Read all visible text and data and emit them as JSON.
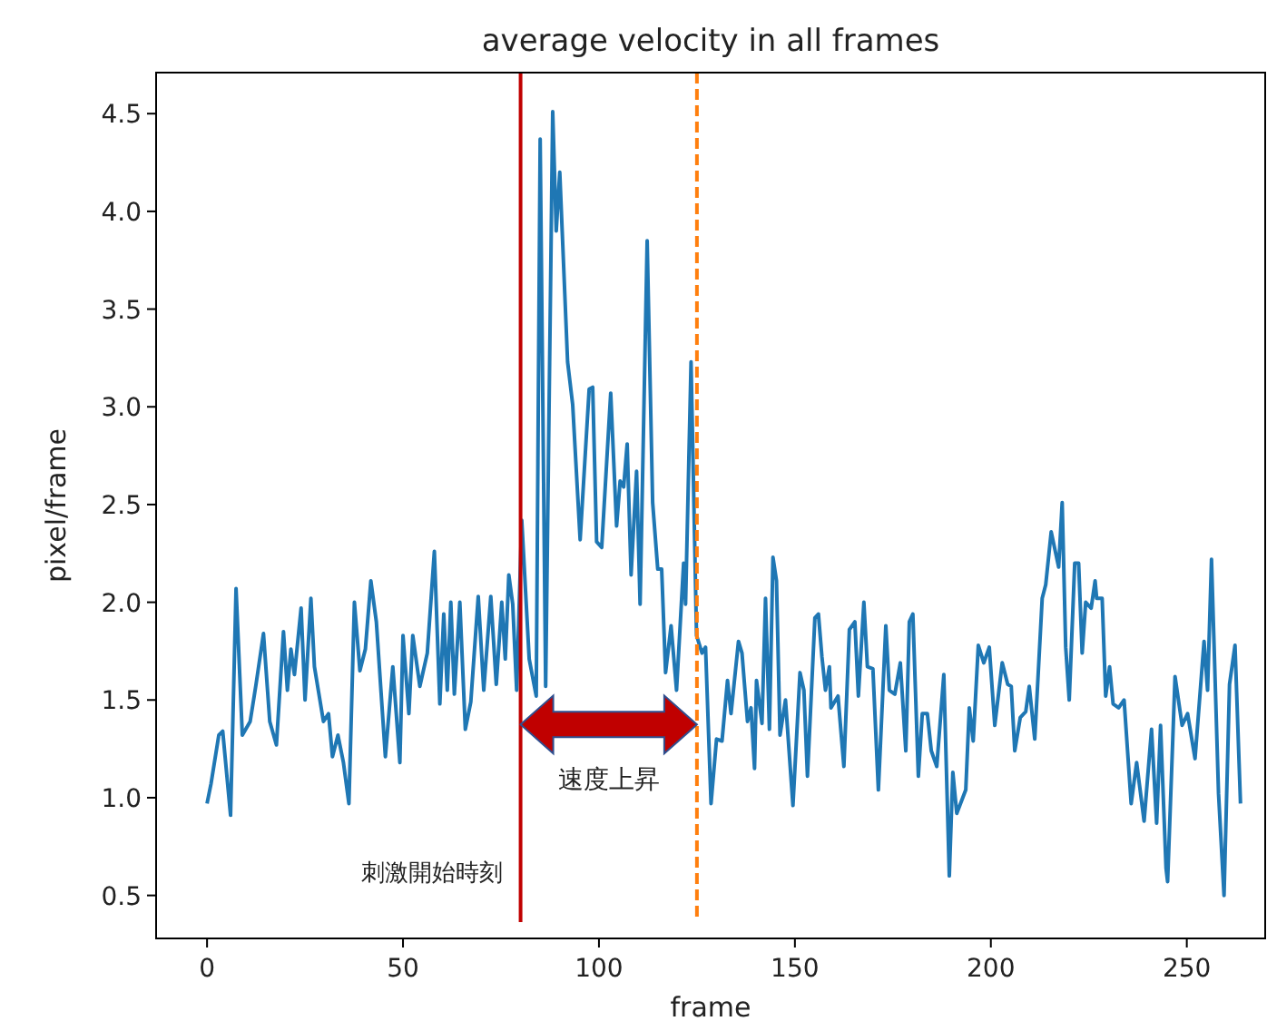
{
  "chart_data": {
    "type": "line",
    "title": "average velocity in all frames",
    "xlabel": "frame",
    "ylabel": "pixel/frame",
    "xlim": [
      -13,
      270
    ],
    "ylim": [
      0.28,
      4.71
    ],
    "xticks": [
      0,
      50,
      100,
      150,
      200,
      250
    ],
    "yticks": [
      0.5,
      {
        "value": 1.0,
        "label": "1.0"
      },
      1.5,
      {
        "value": 2.0,
        "label": "2.0"
      },
      2.5,
      {
        "value": 3.0,
        "label": "3.0"
      },
      3.5,
      {
        "value": 4.0,
        "label": "4.0"
      },
      4.5
    ],
    "grid": false,
    "marker": "none",
    "line_style": "solid",
    "ref_lines": [
      {
        "axis": "x",
        "value": 80,
        "label": "刺激開始時刻",
        "color": "#c00000",
        "line_style": "solid"
      },
      {
        "axis": "x",
        "value": 125,
        "color": "#ff7f0e",
        "line_style": "dashed"
      }
    ],
    "annotations": [
      "速度上昇"
    ],
    "series": [
      {
        "color": "#1f77b4",
        "x": [
          0,
          1,
          3,
          4,
          6,
          7.4,
          9,
          11,
          12.5,
          14.4,
          16,
          17.7,
          19.5,
          20.5,
          21.4,
          22.3,
          24,
          25,
          26.5,
          27.4,
          29.7,
          31,
          32,
          33.4,
          34.8,
          36.2,
          37.6,
          39,
          40.4,
          41.8,
          43.2,
          45.5,
          47.4,
          49.2,
          50,
          51.5,
          52.5,
          54.3,
          56.2,
          58,
          59.4,
          60.4,
          61.3,
          62.2,
          63.1,
          64.5,
          65.9,
          67.3,
          69.2,
          70.6,
          72.4,
          73.8,
          75.2,
          76.1,
          77,
          78,
          79,
          80.3,
          82.2,
          84,
          85,
          86.4,
          88.2,
          89.1,
          90,
          92,
          93.3,
          95.2,
          97.5,
          98.4,
          99.4,
          100.7,
          103,
          104.5,
          105.4,
          106.3,
          107.2,
          108.2,
          109.6,
          110.5,
          112.3,
          113.7,
          115,
          116,
          117,
          118.4,
          119.8,
          121.6,
          122.1,
          123.5,
          124.9,
          126.3,
          127.2,
          128.6,
          130,
          131.4,
          132.8,
          133.7,
          135.6,
          136.5,
          137.9,
          138.8,
          139.7,
          140.2,
          141.6,
          142.5,
          143.5,
          144.4,
          145.3,
          146.2,
          147.6,
          149.5,
          151.3,
          152.3,
          153.2,
          155.1,
          156,
          156.9,
          157.8,
          158.8,
          159.2,
          161,
          162.5,
          163.9,
          165.3,
          166.2,
          167.6,
          168.5,
          169.9,
          171.3,
          173.2,
          174.1,
          175.5,
          176.9,
          178.3,
          179.2,
          180.1,
          181.5,
          182.5,
          183.8,
          184.8,
          186.2,
          188,
          189.4,
          190.3,
          191.3,
          193.6,
          194.5,
          195.5,
          196.8,
          198.2,
          199.6,
          201,
          202.9,
          204.3,
          205.2,
          206.1,
          207.5,
          208.9,
          209.8,
          211.2,
          213.1,
          214,
          215.4,
          217.3,
          218.2,
          219.1,
          220,
          221.4,
          222.4,
          223.3,
          224.2,
          225.6,
          226.6,
          227,
          228.4,
          229.3,
          230.3,
          231.2,
          232.6,
          234,
          235.8,
          237.2,
          239.1,
          241,
          242.3,
          243.3,
          244.7,
          245.1,
          247,
          248.8,
          250.2,
          252.1,
          254.4,
          255.3,
          256.3,
          258.1,
          259.5,
          260.9,
          262.3,
          263.7
        ],
        "values": [
          0.97,
          1.07,
          1.32,
          1.34,
          0.91,
          2.07,
          1.32,
          1.39,
          1.58,
          1.84,
          1.39,
          1.27,
          1.85,
          1.55,
          1.76,
          1.63,
          1.97,
          1.5,
          2.02,
          1.67,
          1.39,
          1.43,
          1.21,
          1.32,
          1.18,
          0.97,
          2.0,
          1.65,
          1.76,
          2.11,
          1.9,
          1.21,
          1.67,
          1.18,
          1.83,
          1.43,
          1.83,
          1.57,
          1.74,
          2.26,
          1.48,
          1.94,
          1.55,
          2.0,
          1.53,
          2.0,
          1.35,
          1.49,
          2.03,
          1.55,
          2.03,
          1.58,
          2.0,
          1.71,
          2.14,
          1.99,
          1.55,
          2.42,
          1.71,
          1.52,
          4.37,
          1.57,
          4.51,
          3.9,
          4.2,
          3.23,
          3.01,
          2.32,
          3.09,
          3.1,
          2.31,
          2.28,
          3.07,
          2.39,
          2.62,
          2.59,
          2.81,
          2.14,
          2.67,
          1.99,
          3.85,
          2.51,
          2.17,
          2.17,
          1.64,
          1.88,
          1.55,
          2.2,
          1.99,
          3.23,
          1.83,
          1.74,
          1.77,
          0.97,
          1.3,
          1.29,
          1.6,
          1.43,
          1.8,
          1.74,
          1.39,
          1.46,
          1.15,
          1.6,
          1.38,
          2.02,
          1.35,
          2.23,
          2.11,
          1.32,
          1.5,
          0.96,
          1.64,
          1.55,
          1.11,
          1.92,
          1.94,
          1.72,
          1.55,
          1.67,
          1.46,
          1.52,
          1.16,
          1.86,
          1.9,
          1.52,
          2.0,
          1.67,
          1.66,
          1.04,
          1.88,
          1.55,
          1.53,
          1.69,
          1.24,
          1.9,
          1.94,
          1.11,
          1.43,
          1.43,
          1.24,
          1.16,
          1.63,
          0.6,
          1.13,
          0.92,
          1.04,
          1.46,
          1.29,
          1.78,
          1.69,
          1.77,
          1.37,
          1.69,
          1.58,
          1.57,
          1.24,
          1.41,
          1.44,
          1.57,
          1.3,
          2.02,
          2.09,
          2.36,
          2.18,
          2.51,
          1.77,
          1.5,
          2.2,
          2.2,
          1.74,
          2.0,
          1.97,
          2.11,
          2.02,
          2.02,
          1.52,
          1.67,
          1.48,
          1.46,
          1.5,
          0.97,
          1.18,
          0.88,
          1.35,
          0.87,
          1.37,
          0.64,
          0.57,
          1.62,
          1.37,
          1.43,
          1.2,
          1.8,
          1.55,
          2.22,
          1.02,
          0.5,
          1.58,
          1.78,
          0.97
        ]
      }
    ]
  }
}
